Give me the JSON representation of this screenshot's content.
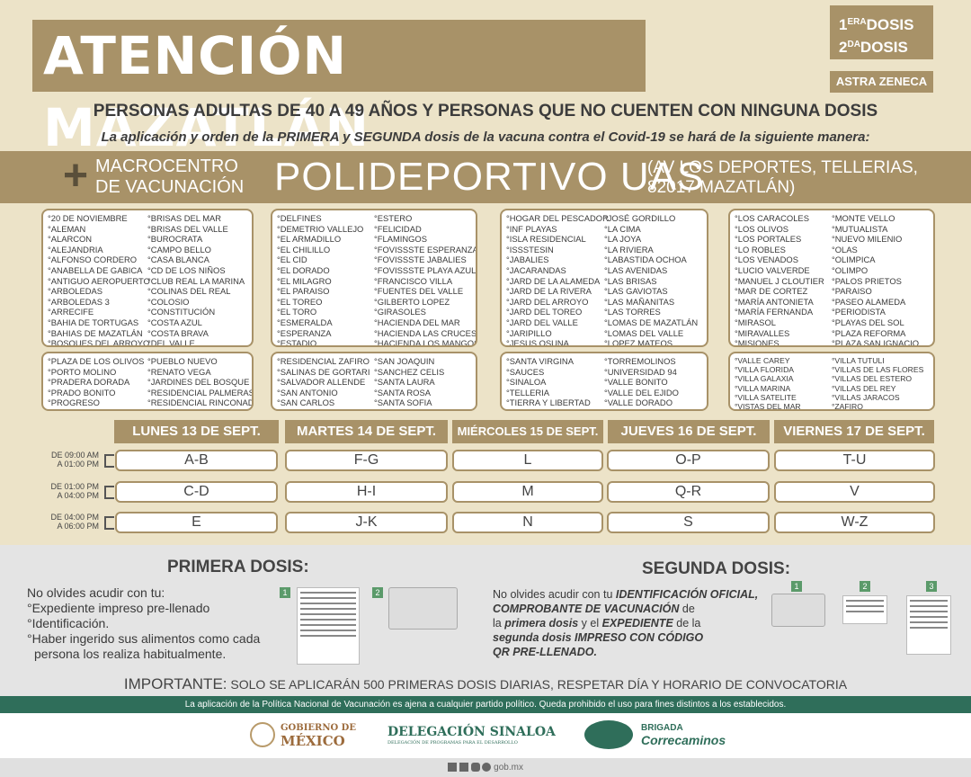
{
  "title": "ATENCIÓN MAZATLÁN",
  "dose": {
    "line1_num": "1",
    "line1_sup": "ERA",
    "line1_text": "DOSIS",
    "line2_num": "2",
    "line2_sup": "DA",
    "line2_text": "DOSIS"
  },
  "vaccine": "ASTRA ZENECA",
  "headline": "PERSONAS ADULTAS DE 40 A 49 AÑOS Y PERSONAS QUE NO CUENTEN CON NINGUNA DOSIS",
  "subline": "La aplicación y orden de la PRIMERA y SEGUNDA dosis de la vacuna contra el Covid-19 se hará de la siguiente manera:",
  "venue": {
    "macro1": "MACROCENTRO",
    "macro2": "DE VACUNACIÓN",
    "name": "POLIDEPORTIVO UAS",
    "addr1": "(AV LOS DEPORTES, TELLERIAS,",
    "addr2": "82017 MAZATLÁN)"
  },
  "colonias": {
    "a1": [
      "°20 DE NOVIEMBRE",
      "°ALEMAN",
      "°ALARCON",
      "°ALEJANDRIA",
      "°ALFONSO CORDERO",
      "°ANABELLA DE GABICA",
      "°ANTIGUO AEROPUERTO",
      "°ARBOLEDAS",
      "°ARBOLEDAS 3",
      "°ARRECIFE",
      "°BAHIA DE TORTUGAS",
      "°BAHIAS DE MAZATLÁN",
      "°BOSQUES DEL ARROYO"
    ],
    "a2": [
      "°BRISAS DEL MAR",
      "°BRISAS DEL VALLE",
      "°BUROCRATA",
      "°CAMPO BELLO",
      "°CASA BLANCA",
      "°CD DE LOS NIÑOS",
      "°CLUB REAL LA MARINA",
      "°COLINAS DEL REAL",
      "°COLOSIO",
      "°CONSTITUCIÓN",
      "°COSTA AZUL",
      "°COSTA BRAVA",
      "°DEL VALLE"
    ],
    "b1": [
      "°DELFINES",
      "°DEMETRIO VALLEJO",
      "°EL ARMADILLO",
      "°EL CHILILLO",
      "°EL CID",
      "°EL DORADO",
      "°EL MILAGRO",
      "°EL PARAISO",
      "°EL TOREO",
      "°EL TORO",
      "°ESMERALDA",
      "°ESPERANZA",
      "°ESTADIO"
    ],
    "b2": [
      "°ESTERO",
      "°FELICIDAD",
      "°FLAMINGOS",
      "°FOVISSSTE ESPERANZA",
      "°FOVISSSTE JABALIES",
      "°FOVISSSTE PLAYA AZUL",
      "°FRANCISCO VILLA",
      "°FUENTES DEL VALLE",
      "°GILBERTO LOPEZ",
      "°GIRASOLES",
      "°HACIENDA DEL MAR",
      "°HACIENDA LAS CRUCES",
      "°HACIENDA LOS MANGOS"
    ],
    "c1": [
      "°HOGAR DEL PESCADOR",
      "°INF PLAYAS",
      "°ISLA RESIDENCIAL",
      "°ISSSTESIN",
      "°JABALIES",
      "°JACARANDAS",
      "°JARD DE LA ALAMEDA",
      "°JARD DE LA RIVERA",
      "°JARD DEL ARROYO",
      "°JARD DEL TOREO",
      "°JARD DEL VALLE",
      "°JARIPILLO",
      "°JESUS OSUNA"
    ],
    "c2": [
      "°JOSÉ GORDILLO",
      "°LA CIMA",
      "°LA JOYA",
      "°LA RIVIERA",
      "°LABASTIDA OCHOA",
      "°LAS AVENIDAS",
      "°LAS BRISAS",
      "°LAS GAVIOTAS",
      "°LAS MAÑANITAS",
      "°LAS TORRES",
      "°LOMAS DE MAZATLÁN",
      "°LOMAS DEL VALLE",
      "°LOPEZ MATEOS"
    ],
    "d1": [
      "°LOS CARACOLES",
      "°LOS OLIVOS",
      "°LOS PORTALES",
      "°LO ROBLES",
      "°LOS VENADOS",
      "°LUCIO VALVERDE",
      "°MANUEL J CLOUTIER",
      "°MAR DE CORTEZ",
      "°MARÍA ANTONIETA",
      "°MARÍA FERNANDA",
      "°MIRASOL",
      "°MIRAVALLES",
      "°MISIONES"
    ],
    "d2": [
      "°MONTE VELLO",
      "°MUTUALISTA",
      "°NUEVO MILENIO",
      "°OLAS",
      "°OLIMPICA",
      "°OLIMPO",
      "°PALOS PRIETOS",
      "°PARAISO",
      "°PASEO ALAMEDA",
      "°PERIODISTA",
      "°PLAYAS DEL SOL",
      "°PLAZA REFORMA",
      "°PLAZA SAN IGNACIO"
    ],
    "e1": [
      "°PLAZA DE LOS OLIVOS",
      "°PORTO MOLINO",
      "°PRADERA DORADA",
      "°PRADO BONITO",
      "°PROGRESO"
    ],
    "e2": [
      "°PUEBLO NUEVO",
      "°RENATO VEGA",
      "°JARDINES DEL BOSQUE",
      "°RESIDENCIAL PALMERAS",
      "°RESIDENCIAL RINCONADA"
    ],
    "f1": [
      "°RESIDENCIAL ZAFIRO",
      "°SALINAS DE GORTARI",
      "°SALVADOR ALLENDE",
      "°SAN ANTONIO",
      "°SAN CARLOS"
    ],
    "f2": [
      "°SAN JOAQUIN",
      "°SANCHEZ CELIS",
      "°SANTA LAURA",
      "°SANTA ROSA",
      "°SANTA SOFIA"
    ],
    "g1": [
      "°SANTA VIRGINA",
      "°SAUCES",
      "°SINALOA",
      "°TELLERIA",
      "°TIERRA Y LIBERTAD"
    ],
    "g2": [
      "°TORREMOLINOS",
      "°UNIVERSIDAD 94",
      "°VALLE BONITO",
      "°VALLE DEL EJIDO",
      "°VALLE DORADO"
    ],
    "h1": [
      "°VALLE CAREY",
      "°VILLA FLORIDA",
      "°VILLA GALAXIA",
      "°VILLA MARINA",
      "°VILLA SATELITE",
      "°VISTAS DEL MAR"
    ],
    "h2": [
      "°VILLA TUTULI",
      "°VILLAS DE LAS FLORES",
      "°VILLAS DEL ESTERO",
      "°VILLAS DEL REY",
      "°VILLAS JARACOS",
      "°ZAFIRO"
    ]
  },
  "days": [
    "LUNES 13 DE SEPT.",
    "MARTES 14 DE SEPT.",
    "MIÉRCOLES 15 DE SEPT.",
    "JUEVES 16 DE SEPT.",
    "VIERNES 17 DE SEPT."
  ],
  "times": [
    [
      "DE 09:00 AM",
      "A 01:00 PM"
    ],
    [
      "DE 01:00 PM",
      "A 04:00 PM"
    ],
    [
      "DE 04:00 PM",
      "A 06:00 PM"
    ]
  ],
  "slots": [
    [
      "A-B",
      "F-G",
      "L",
      "O-P",
      "T-U"
    ],
    [
      "C-D",
      "H-I",
      "M",
      "Q-R",
      "V"
    ],
    [
      "E",
      "J-K",
      "N",
      "S",
      "W-Z"
    ]
  ],
  "primera": {
    "title": "PRIMERA DOSIS:",
    "l1": "No olvides acudir con tu:",
    "l2": "°Expediente impreso pre-llenado",
    "l3": "°Identificación.",
    "l4": "°Haber ingerido sus alimentos como cada",
    "l5": "persona los realiza habitualmente.",
    "n1": "1",
    "n2": "2"
  },
  "segunda": {
    "title": "SEGUNDA DOSIS:",
    "t1": "No olvides acudir con tu ",
    "b1": "IDENTIFICACIÓN OFICIAL,",
    "b2": "COMPROBANTE DE VACUNACIÓN",
    "t2": " de",
    "t3": "la ",
    "b3": "primera dosis",
    "t4": " y el ",
    "b4": "EXPEDIENTE",
    "t5": " de la",
    "b5": "segunda dosis IMPRESO CON CÓDIGO",
    "b6": "QR PRE-LLENADO.",
    "n1": "1",
    "n2": "2",
    "n3": "3"
  },
  "important": {
    "label": "IMPORTANTE:",
    "text": " SOLO SE APLICARÁN 500 PRIMERAS DOSIS DIARIAS, RESPETAR DÍA Y HORARIO DE CONVOCATORIA"
  },
  "disclaimer": "La aplicación de la Política Nacional de Vacunación es ajena a cualquier partido político. Queda prohibido el uso para fines distintos a los establecidos.",
  "logos": {
    "gob1": "GOBIERNO DE",
    "gob2": "MÉXICO",
    "del1": "DELEGACIÓN SINALOA",
    "del2": "DELEGACIÓN DE PROGRAMAS PARA EL DESARROLLO",
    "bri1": "BRIGADA",
    "bri2": "Correcaminos"
  },
  "footer": "gob.mx"
}
